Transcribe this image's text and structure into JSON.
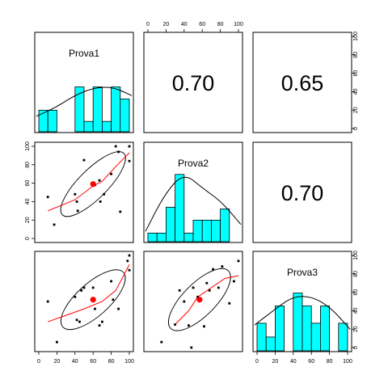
{
  "chart_data": {
    "type": "scatter",
    "subtype": "scatterplot-matrix (pairs.panels)",
    "variables": [
      "Prova1",
      "Prova2",
      "Prova3"
    ],
    "axis_range": [
      0,
      100
    ],
    "ticks": [
      0,
      20,
      40,
      60,
      80,
      100
    ],
    "tick_labels": [
      "0",
      "20",
      "40",
      "60",
      "80",
      "100"
    ],
    "correlations": [
      {
        "row": 0,
        "col": 1,
        "label": "0.70"
      },
      {
        "row": 0,
        "col": 2,
        "label": "0.65"
      },
      {
        "row": 1,
        "col": 2,
        "label": "0.70"
      }
    ],
    "histograms": [
      {
        "variable": "Prova1",
        "bin_edges": [
          0,
          10,
          20,
          30,
          40,
          50,
          60,
          70,
          80,
          90,
          100
        ],
        "densities": [
          0.25,
          0.25,
          0,
          0,
          0.52,
          0.12,
          0.52,
          0.12,
          0.52,
          0.38
        ],
        "density_curve": [
          [
            0,
            0.18
          ],
          [
            20,
            0.28
          ],
          [
            40,
            0.42
          ],
          [
            60,
            0.51
          ],
          [
            80,
            0.52
          ],
          [
            100,
            0.42
          ]
        ]
      },
      {
        "variable": "Prova2",
        "bin_edges": [
          0,
          10,
          20,
          30,
          40,
          50,
          60,
          70,
          80,
          90,
          100
        ],
        "densities": [
          0.1,
          0.1,
          0.4,
          0.78,
          0.1,
          0.25,
          0.25,
          0.25,
          0.38,
          0
        ],
        "density_curve": [
          [
            0,
            0.12
          ],
          [
            20,
            0.55
          ],
          [
            40,
            0.8
          ],
          [
            60,
            0.62
          ],
          [
            80,
            0.46
          ],
          [
            100,
            0.2
          ]
        ]
      },
      {
        "variable": "Prova3",
        "bin_edges": [
          0,
          10,
          20,
          30,
          40,
          50,
          60,
          70,
          80,
          90,
          100
        ],
        "densities": [
          0.32,
          0.16,
          0.52,
          0,
          0.67,
          0.52,
          0.32,
          0.52,
          0,
          0.32
        ],
        "density_curve": [
          [
            0,
            0.3
          ],
          [
            20,
            0.47
          ],
          [
            40,
            0.63
          ],
          [
            60,
            0.63
          ],
          [
            80,
            0.5
          ],
          [
            100,
            0.25
          ]
        ]
      }
    ],
    "scatter_panels": [
      {
        "row": 1,
        "col": 0,
        "x_variable": "Prova1",
        "y_variable": "Prova2",
        "points": [
          [
            10,
            45
          ],
          [
            17,
            15
          ],
          [
            40,
            48
          ],
          [
            42,
            40
          ],
          [
            43,
            30
          ],
          [
            50,
            85
          ],
          [
            62,
            58
          ],
          [
            67,
            63
          ],
          [
            68,
            40
          ],
          [
            72,
            48
          ],
          [
            80,
            70
          ],
          [
            85,
            100
          ],
          [
            88,
            94
          ],
          [
            90,
            29
          ],
          [
            100,
            100
          ],
          [
            100,
            84
          ]
        ],
        "mean": [
          60,
          59
        ],
        "lowess": [
          [
            10,
            30
          ],
          [
            40,
            42
          ],
          [
            60,
            57
          ],
          [
            70,
            62
          ],
          [
            85,
            78
          ],
          [
            100,
            93
          ]
        ],
        "ellipse": {
          "center": [
            60,
            59
          ],
          "semi_major": 48,
          "semi_minor": 16,
          "angle_deg": 45
        }
      },
      {
        "row": 2,
        "col": 0,
        "x_variable": "Prova1",
        "y_variable": "Prova3",
        "points": [
          [
            10,
            50
          ],
          [
            20,
            6
          ],
          [
            40,
            55
          ],
          [
            42,
            30
          ],
          [
            45,
            28
          ],
          [
            47,
            62
          ],
          [
            50,
            65
          ],
          [
            60,
            65
          ],
          [
            62,
            42
          ],
          [
            67,
            24
          ],
          [
            70,
            28
          ],
          [
            80,
            72
          ],
          [
            82,
            52
          ],
          [
            88,
            42
          ],
          [
            98,
            94
          ],
          [
            100,
            84
          ],
          [
            100,
            100
          ]
        ],
        "mean": [
          60,
          52
        ],
        "lowess": [
          [
            10,
            28
          ],
          [
            30,
            35
          ],
          [
            50,
            42
          ],
          [
            70,
            50
          ],
          [
            85,
            62
          ],
          [
            100,
            90
          ]
        ],
        "ellipse": {
          "center": [
            60,
            52
          ],
          "semi_major": 45,
          "semi_minor": 18,
          "angle_deg": 42
        }
      },
      {
        "row": 2,
        "col": 1,
        "x_variable": "Prova2",
        "y_variable": "Prova3",
        "points": [
          [
            15,
            6
          ],
          [
            30,
            25
          ],
          [
            35,
            62
          ],
          [
            40,
            50
          ],
          [
            45,
            24
          ],
          [
            48,
            0
          ],
          [
            50,
            65
          ],
          [
            55,
            55
          ],
          [
            62,
            23
          ],
          [
            65,
            70
          ],
          [
            68,
            62
          ],
          [
            72,
            85
          ],
          [
            78,
            65
          ],
          [
            82,
            88
          ],
          [
            90,
            48
          ],
          [
            95,
            72
          ],
          [
            100,
            94
          ]
        ],
        "mean": [
          57,
          52
        ],
        "lowess": [
          [
            30,
            25
          ],
          [
            45,
            40
          ],
          [
            55,
            55
          ],
          [
            70,
            65
          ],
          [
            85,
            75
          ],
          [
            100,
            78
          ]
        ],
        "ellipse": {
          "center": [
            57,
            52
          ],
          "semi_major": 45,
          "semi_minor": 18,
          "angle_deg": 45
        }
      }
    ],
    "colors": {
      "histogram_fill": "#00ffff",
      "mean_point": "#ff0000",
      "lowess": "#ff0000",
      "points": "#000000",
      "ellipse": "#000000",
      "frame": "#000000"
    }
  }
}
